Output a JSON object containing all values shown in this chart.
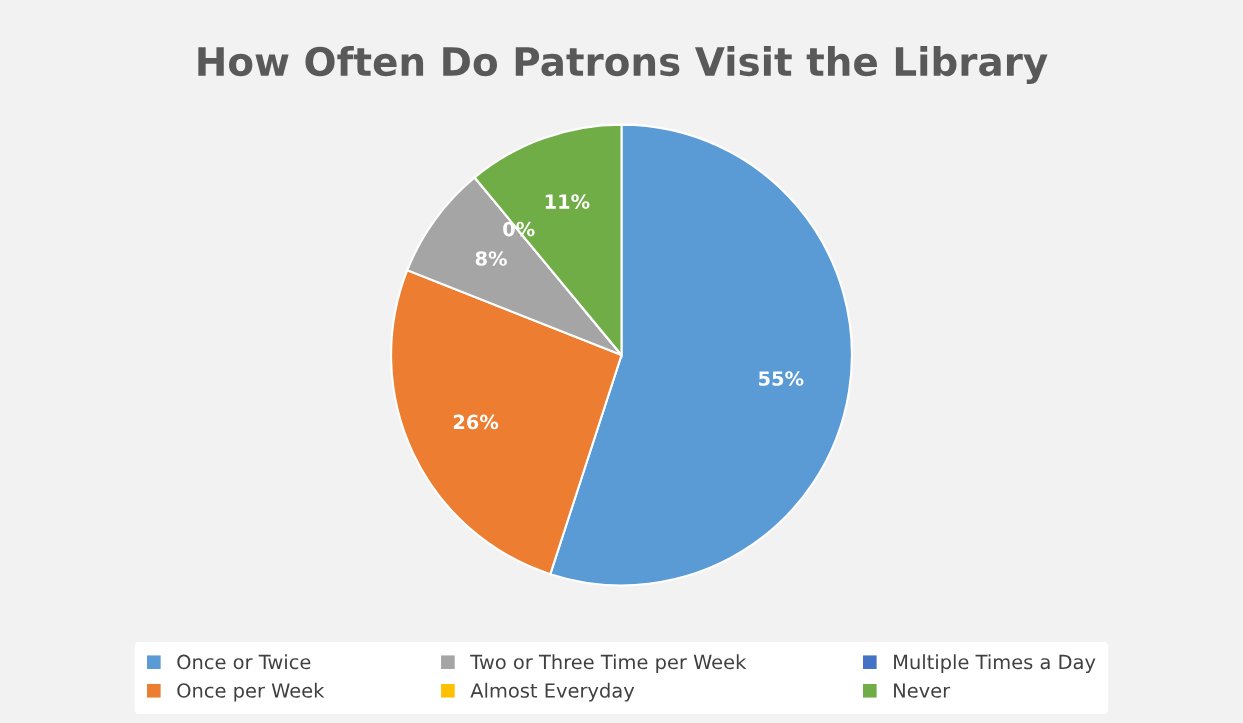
{
  "chart_data": {
    "type": "pie",
    "title": "How Often Do Patrons Visit the Library",
    "categories": [
      "Once or Twice",
      "Once per Week",
      "Two or Three Time per Week",
      "Almost Everyday",
      "Multiple Times a Day",
      "Never"
    ],
    "values": [
      55,
      26,
      8,
      0,
      0,
      11
    ],
    "colors": [
      "#5b9bd5",
      "#ed7d31",
      "#a5a5a5",
      "#ffc000",
      "#4472c4",
      "#70ad47"
    ],
    "value_labels": [
      "55%",
      "26%",
      "8%",
      "0%",
      null,
      "11%"
    ],
    "legend": "bottom"
  }
}
